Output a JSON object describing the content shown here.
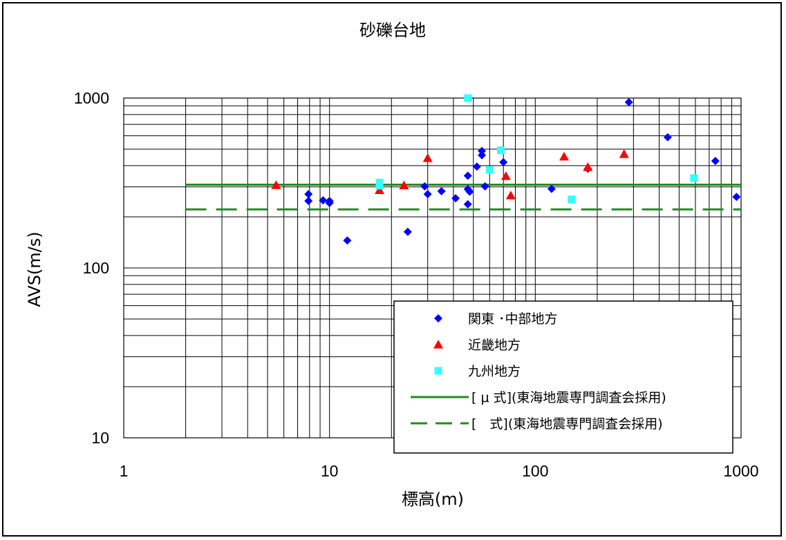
{
  "chart_data": {
    "type": "scatter",
    "title": "砂礫台地",
    "xlabel": "標高(m)",
    "ylabel": "AVS(m/s)",
    "x_scale": "log",
    "y_scale": "log",
    "xlim": [
      1,
      1000
    ],
    "ylim": [
      10,
      1000
    ],
    "x_ticks": [
      "1",
      "10",
      "100",
      "1000"
    ],
    "y_ticks": [
      "10",
      "100",
      "1000"
    ],
    "grid": true,
    "legend_position": "bottom-right",
    "series": [
      {
        "name": "関東 ･中部地方",
        "marker": "diamond",
        "color": "#0000ff",
        "points": [
          [
            7.9,
            272
          ],
          [
            7.9,
            248
          ],
          [
            9.3,
            250
          ],
          [
            10,
            248
          ],
          [
            10,
            241
          ],
          [
            12.2,
            145
          ],
          [
            24,
            163
          ],
          [
            29,
            302
          ],
          [
            30,
            272
          ],
          [
            35,
            283
          ],
          [
            41,
            257
          ],
          [
            47,
            349
          ],
          [
            47,
            291
          ],
          [
            48,
            281
          ],
          [
            47,
            237
          ],
          [
            52,
            395
          ],
          [
            55,
            461
          ],
          [
            55,
            488
          ],
          [
            57,
            302
          ],
          [
            70,
            419
          ],
          [
            120,
            292
          ],
          [
            180,
            384
          ],
          [
            285,
            945
          ],
          [
            440,
            588
          ],
          [
            750,
            426
          ],
          [
            950,
            262
          ]
        ]
      },
      {
        "name": "近畿地方",
        "marker": "triangle",
        "color": "#ff0000",
        "points": [
          [
            5.5,
            307
          ],
          [
            17.5,
            287
          ],
          [
            23,
            306
          ],
          [
            30,
            443
          ],
          [
            72,
            347
          ],
          [
            76,
            267
          ],
          [
            138,
            452
          ],
          [
            180,
            392
          ],
          [
            270,
            468
          ]
        ]
      },
      {
        "name": "九州地方",
        "marker": "square",
        "color": "#33ffff",
        "points": [
          [
            17.5,
            318
          ],
          [
            17.5,
            305
          ],
          [
            47,
            1000
          ],
          [
            60,
            378
          ],
          [
            68,
            493
          ],
          [
            150,
            253
          ],
          [
            590,
            338
          ]
        ]
      },
      {
        "name": "[ μ 式](東海地震専門調査会採用)",
        "marker": "line",
        "line_style": "solid",
        "color": "#228b22",
        "x": [
          2,
          1000
        ],
        "values": [
          309,
          309
        ]
      },
      {
        "name": "[　式](東海地震専門調査会採用)",
        "marker": "line",
        "line_style": "dashed",
        "color": "#228b22",
        "x": [
          2,
          1000
        ],
        "values": [
          221,
          221
        ]
      }
    ]
  }
}
